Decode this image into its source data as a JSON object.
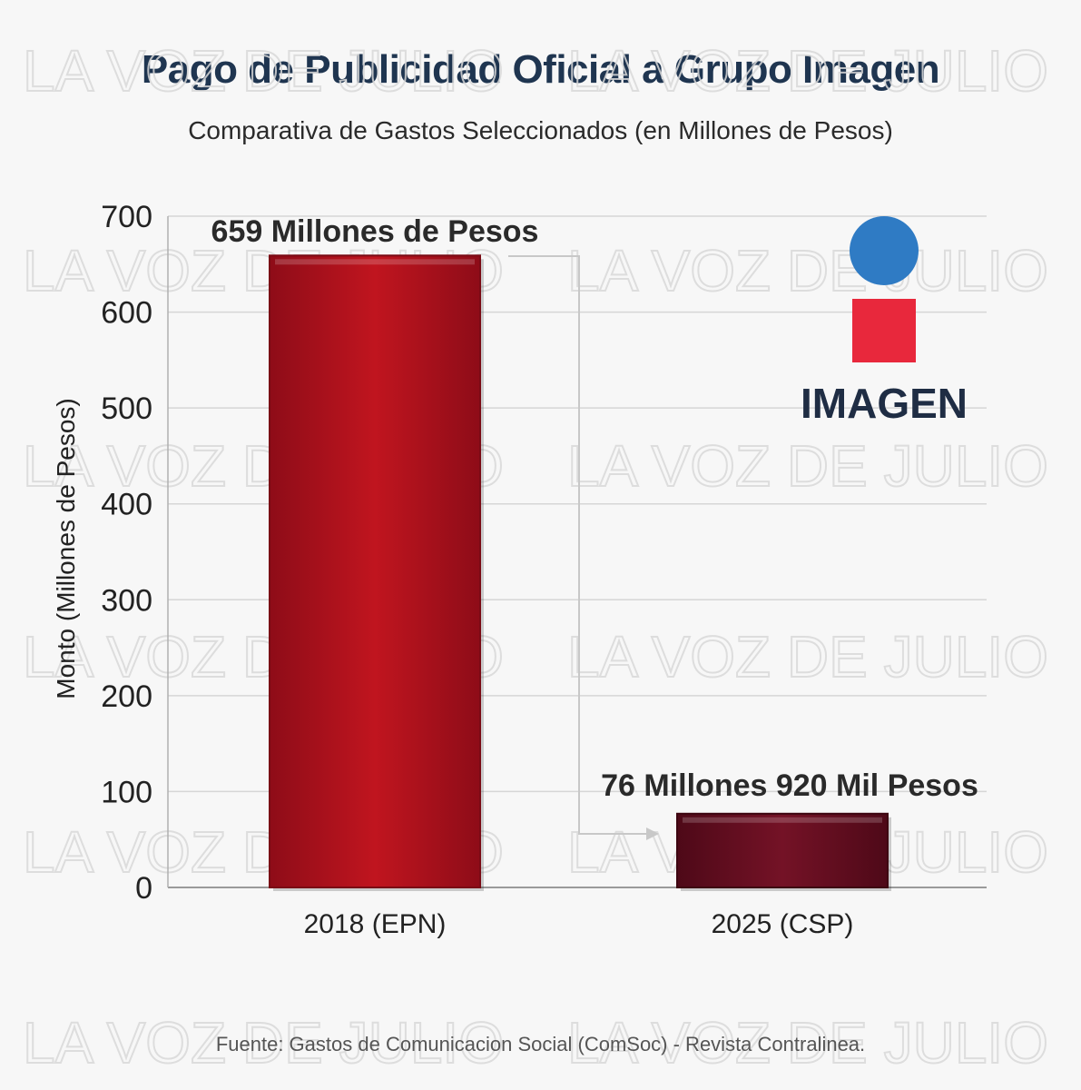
{
  "title": "Pago de Publicidad Oficial a Grupo Imagen",
  "subtitle": "Comparativa de Gastos Seleccionados (en Millones de Pesos)",
  "source": "Fuente: Gastos de Comunicacion Social (ComSoc) - Revista Contralinea.",
  "logo": {
    "text": "IMAGEN",
    "circle_color": "#2f7bc4",
    "square_color": "#e8283c",
    "text_color": "#1f2d44"
  },
  "watermark": "LA VOZ DE JULIO",
  "chart_data": {
    "type": "bar",
    "title": "Pago de Publicidad Oficial a Grupo Imagen",
    "subtitle": "Comparativa de Gastos Seleccionados (en Millones de Pesos)",
    "xlabel": "",
    "ylabel": "Monto (Millones de Pesos)",
    "ylim": [
      0,
      700
    ],
    "yticks": [
      0,
      100,
      200,
      300,
      400,
      500,
      600,
      700
    ],
    "grid": true,
    "categories": [
      "2018 (EPN)",
      "2025 (CSP)"
    ],
    "values": [
      659,
      76.92
    ],
    "data_labels": [
      "659 Millones de Pesos",
      "76 Millones 920 Mil Pesos"
    ],
    "colors": [
      "#b5121f",
      "#6e0f24"
    ]
  }
}
